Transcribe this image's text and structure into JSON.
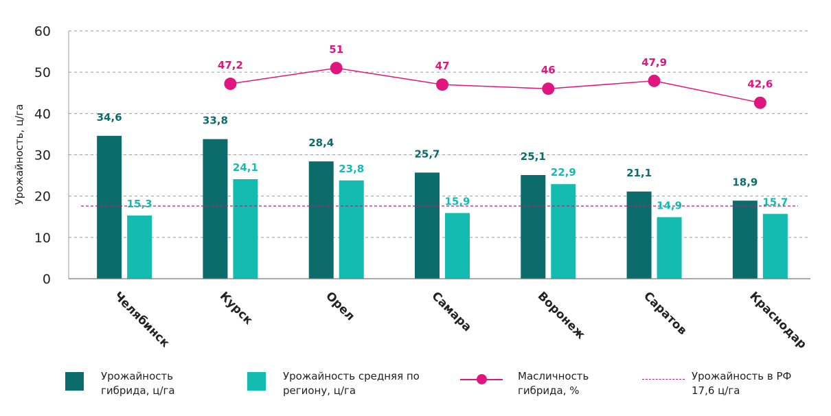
{
  "chart_data": {
    "type": "bar",
    "ylabel": "Урожайность, ц/га",
    "ylim": [
      0,
      60
    ],
    "yticks": [
      0,
      10,
      20,
      30,
      40,
      50,
      60
    ],
    "grid": true,
    "categories": [
      "Челябинск",
      "Курск",
      "Орел",
      "Самара",
      "Воронеж",
      "Саратов",
      "Краснодар"
    ],
    "series": [
      {
        "name": "Урожайность гибрида, ц/га",
        "kind": "bar",
        "color": "#0c6b6b",
        "values": [
          34.6,
          33.8,
          28.4,
          25.7,
          25.1,
          21.1,
          18.9
        ],
        "labels": [
          "34,6",
          "33,8",
          "28,4",
          "25,7",
          "25,1",
          "21,1",
          "18,9"
        ]
      },
      {
        "name": "Урожайность средняя по региону, ц/га",
        "kind": "bar",
        "color": "#14bbb0",
        "values": [
          15.3,
          24.1,
          23.8,
          15.9,
          22.9,
          14.9,
          15.7
        ],
        "labels": [
          "15,3",
          "24,1",
          "23,8",
          "15,9",
          "22,9",
          "14,9",
          "15,7"
        ]
      },
      {
        "name": "Масличность гибрида, %",
        "kind": "line",
        "color": "#e0157f",
        "values": [
          null,
          47.2,
          51,
          47,
          46,
          47.9,
          42.6
        ],
        "labels": [
          "",
          "47,2",
          "51",
          "47",
          "46",
          "47,9",
          "42,6"
        ]
      }
    ],
    "reference_line": {
      "name": "Урожайность в РФ 17,6 ц/га",
      "value": 17.6,
      "color": "#b0237f",
      "style": "dashed"
    }
  },
  "legend": [
    {
      "text": "Урожайность гибрида, ц/га",
      "swatch": "box",
      "color": "#0c6b6b"
    },
    {
      "text": "Урожайность средняя по региону, ц/га",
      "swatch": "box",
      "color": "#14bbb0"
    },
    {
      "text": "Масличность гибрида, %",
      "swatch": "line-marker",
      "color": "#e0157f"
    },
    {
      "text": "Урожайность в РФ 17,6 ц/га",
      "swatch": "dashed-line",
      "color": "#b0237f"
    }
  ]
}
